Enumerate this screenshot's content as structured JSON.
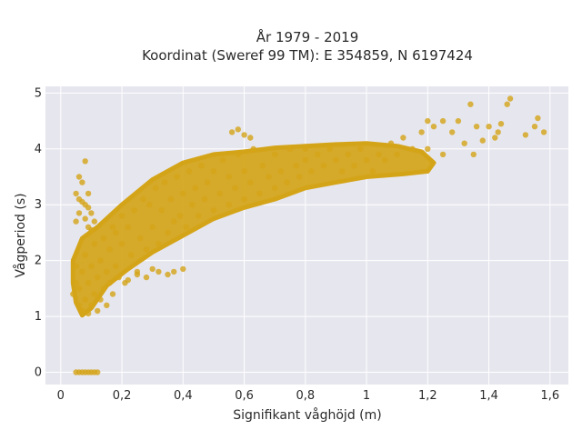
{
  "chart_data": {
    "type": "scatter",
    "title_line1": "År 1979 - 2019",
    "title_line2": "Koordinat (Sweref 99 TM): E 354859, N 6197424",
    "xlabel": "Signifikant våghöjd (m)",
    "ylabel": "Vågperiod (s)",
    "xlim": [
      -0.05,
      1.66
    ],
    "ylim": [
      -0.22,
      5.12
    ],
    "x_ticks": [
      0,
      0.2,
      0.4,
      0.6,
      0.8,
      1,
      1.2,
      1.4,
      1.6
    ],
    "x_tick_labels": [
      "0",
      "0,2",
      "0,4",
      "0,6",
      "0,8",
      "1",
      "1,2",
      "1,4",
      "1,6"
    ],
    "y_ticks": [
      0,
      1,
      2,
      3,
      4,
      5
    ],
    "y_tick_labels": [
      "0",
      "1",
      "2",
      "3",
      "4",
      "5"
    ],
    "grid": true,
    "marker_color": "#D4A418",
    "plot_bg": "#E6E6EF",
    "points": [
      [
        0.05,
        0
      ],
      [
        0.06,
        0
      ],
      [
        0.07,
        0
      ],
      [
        0.08,
        0
      ],
      [
        0.09,
        0
      ],
      [
        0.1,
        0
      ],
      [
        0.11,
        0
      ],
      [
        0.12,
        0
      ],
      [
        0.05,
        3.2
      ],
      [
        0.06,
        3.5
      ],
      [
        0.07,
        3.4
      ],
      [
        0.08,
        3.0
      ],
      [
        0.07,
        3.05
      ],
      [
        0.09,
        3.2
      ],
      [
        0.08,
        3.78
      ],
      [
        0.09,
        2.95
      ],
      [
        0.06,
        2.85
      ],
      [
        0.08,
        2.75
      ],
      [
        0.06,
        3.1
      ],
      [
        0.1,
        2.85
      ],
      [
        0.1,
        2.55
      ],
      [
        0.11,
        2.7
      ],
      [
        0.09,
        2.6
      ],
      [
        0.05,
        2.7
      ],
      [
        0.04,
        1.4
      ],
      [
        0.05,
        1.6
      ],
      [
        0.05,
        1.9
      ],
      [
        0.06,
        1.2
      ],
      [
        0.06,
        1.5
      ],
      [
        0.07,
        1.1
      ],
      [
        0.07,
        1.8
      ],
      [
        0.08,
        1.3
      ],
      [
        0.08,
        2.1
      ],
      [
        0.09,
        1.05
      ],
      [
        0.09,
        1.6
      ],
      [
        0.1,
        1.2
      ],
      [
        0.1,
        1.9
      ],
      [
        0.11,
        1.4
      ],
      [
        0.11,
        2.3
      ],
      [
        0.12,
        1.1
      ],
      [
        0.12,
        1.7
      ],
      [
        0.13,
        1.3
      ],
      [
        0.13,
        2.0
      ],
      [
        0.14,
        1.5
      ],
      [
        0.14,
        2.4
      ],
      [
        0.15,
        1.2
      ],
      [
        0.15,
        1.8
      ],
      [
        0.16,
        1.6
      ],
      [
        0.16,
        2.2
      ],
      [
        0.17,
        1.4
      ],
      [
        0.17,
        2.6
      ],
      [
        0.18,
        1.9
      ],
      [
        0.18,
        2.5
      ],
      [
        0.19,
        1.7
      ],
      [
        0.2,
        2.3
      ],
      [
        0.2,
        2.8
      ],
      [
        0.21,
        1.6
      ],
      [
        0.22,
        2.6
      ],
      [
        0.23,
        2.1
      ],
      [
        0.24,
        2.9
      ],
      [
        0.25,
        1.8
      ],
      [
        0.26,
        2.4
      ],
      [
        0.27,
        3.1
      ],
      [
        0.28,
        2.2
      ],
      [
        0.29,
        3.0
      ],
      [
        0.3,
        2.6
      ],
      [
        0.31,
        3.3
      ],
      [
        0.32,
        2.3
      ],
      [
        0.33,
        2.9
      ],
      [
        0.34,
        3.4
      ],
      [
        0.35,
        2.5
      ],
      [
        0.36,
        3.1
      ],
      [
        0.37,
        2.7
      ],
      [
        0.38,
        3.5
      ],
      [
        0.39,
        2.8
      ],
      [
        0.4,
        3.2
      ],
      [
        0.41,
        2.6
      ],
      [
        0.42,
        3.6
      ],
      [
        0.43,
        3.0
      ],
      [
        0.44,
        3.3
      ],
      [
        0.45,
        2.8
      ],
      [
        0.46,
        3.7
      ],
      [
        0.47,
        3.1
      ],
      [
        0.48,
        3.4
      ],
      [
        0.5,
        2.9
      ],
      [
        0.5,
        3.6
      ],
      [
        0.52,
        3.2
      ],
      [
        0.53,
        3.8
      ],
      [
        0.55,
        3.0
      ],
      [
        0.55,
        3.5
      ],
      [
        0.57,
        3.3
      ],
      [
        0.58,
        3.9
      ],
      [
        0.6,
        3.1
      ],
      [
        0.6,
        3.6
      ],
      [
        0.62,
        3.4
      ],
      [
        0.63,
        4.0
      ],
      [
        0.65,
        3.2
      ],
      [
        0.66,
        3.7
      ],
      [
        0.68,
        3.5
      ],
      [
        0.7,
        3.3
      ],
      [
        0.7,
        3.9
      ],
      [
        0.72,
        3.6
      ],
      [
        0.74,
        3.4
      ],
      [
        0.75,
        4.0
      ],
      [
        0.77,
        3.7
      ],
      [
        0.78,
        3.5
      ],
      [
        0.8,
        3.8
      ],
      [
        0.8,
        4.0
      ],
      [
        0.82,
        3.6
      ],
      [
        0.84,
        3.9
      ],
      [
        0.86,
        3.7
      ],
      [
        0.88,
        4.0
      ],
      [
        0.9,
        3.8
      ],
      [
        0.92,
        3.6
      ],
      [
        0.94,
        3.9
      ],
      [
        0.96,
        3.7
      ],
      [
        0.98,
        4.0
      ],
      [
        1.0,
        3.8
      ],
      [
        1.02,
        3.6
      ],
      [
        1.04,
        3.9
      ],
      [
        1.06,
        3.8
      ],
      [
        1.08,
        4.1
      ],
      [
        1.1,
        3.9
      ],
      [
        1.12,
        4.2
      ],
      [
        1.15,
        4.0
      ],
      [
        1.18,
        4.3
      ],
      [
        1.2,
        4.5
      ],
      [
        1.22,
        4.4
      ],
      [
        1.25,
        4.5
      ],
      [
        1.28,
        4.3
      ],
      [
        1.3,
        4.5
      ],
      [
        1.32,
        4.1
      ],
      [
        1.34,
        4.8
      ],
      [
        1.36,
        4.4
      ],
      [
        1.4,
        4.4
      ],
      [
        1.43,
        4.3
      ],
      [
        1.44,
        4.45
      ],
      [
        1.46,
        4.8
      ],
      [
        1.47,
        4.9
      ],
      [
        1.52,
        4.25
      ],
      [
        1.55,
        4.4
      ],
      [
        1.56,
        4.55
      ],
      [
        1.58,
        4.3
      ],
      [
        1.35,
        3.9
      ],
      [
        1.25,
        3.9
      ],
      [
        1.2,
        4.0
      ],
      [
        1.38,
        4.15
      ],
      [
        1.42,
        4.2
      ],
      [
        0.58,
        4.35
      ],
      [
        0.56,
        4.3
      ],
      [
        0.62,
        4.2
      ],
      [
        0.6,
        4.25
      ],
      [
        0.3,
        1.85
      ],
      [
        0.32,
        1.8
      ],
      [
        0.35,
        1.75
      ],
      [
        0.37,
        1.8
      ],
      [
        0.25,
        1.75
      ],
      [
        0.28,
        1.7
      ],
      [
        0.22,
        1.65
      ],
      [
        0.4,
        1.85
      ]
    ]
  }
}
